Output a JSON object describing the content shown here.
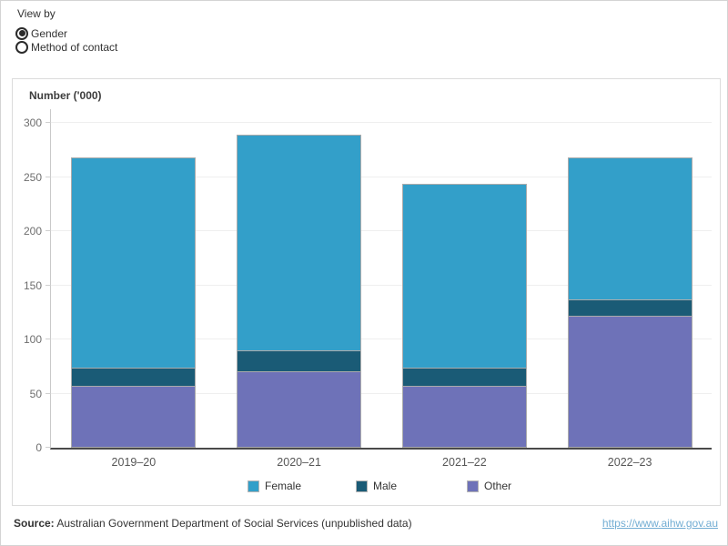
{
  "controls": {
    "title": "View by",
    "options": [
      {
        "label": "Gender",
        "selected": true
      },
      {
        "label": "Method of contact",
        "selected": false
      }
    ]
  },
  "chart_data": {
    "type": "bar",
    "subtype": "stacked",
    "title": "Number ('000)",
    "categories": [
      "2019–20",
      "2020–21",
      "2021–22",
      "2022–23"
    ],
    "series": [
      {
        "name": "Female",
        "color": "#339fc9",
        "values": [
          195,
          200,
          170,
          132
        ]
      },
      {
        "name": "Male",
        "color": "#1a5b76",
        "values": [
          18,
          20,
          18,
          16
        ]
      },
      {
        "name": "Other",
        "color": "#6e72b8",
        "values": [
          57,
          71,
          57,
          122
        ]
      }
    ],
    "stack_order_bottom_to_top": [
      "Other",
      "Male",
      "Female"
    ],
    "totals": [
      270,
      291,
      245,
      270
    ],
    "ylabel": "Number ('000)",
    "ylim": [
      0,
      300
    ],
    "ytick_interval": 50,
    "grid": true,
    "legend_position": "bottom",
    "colors": {
      "female": "#339fc9",
      "male": "#1a5b76",
      "other": "#6e72b8",
      "axis_line": "#4a4a4a",
      "gridline": "#efefef",
      "segment_border": "#ababab"
    }
  },
  "footer": {
    "source_label": "Source:",
    "source_text": "Australian Government Department of Social Services (unpublished data)",
    "link_text": "https://www.aihw.gov.au"
  }
}
